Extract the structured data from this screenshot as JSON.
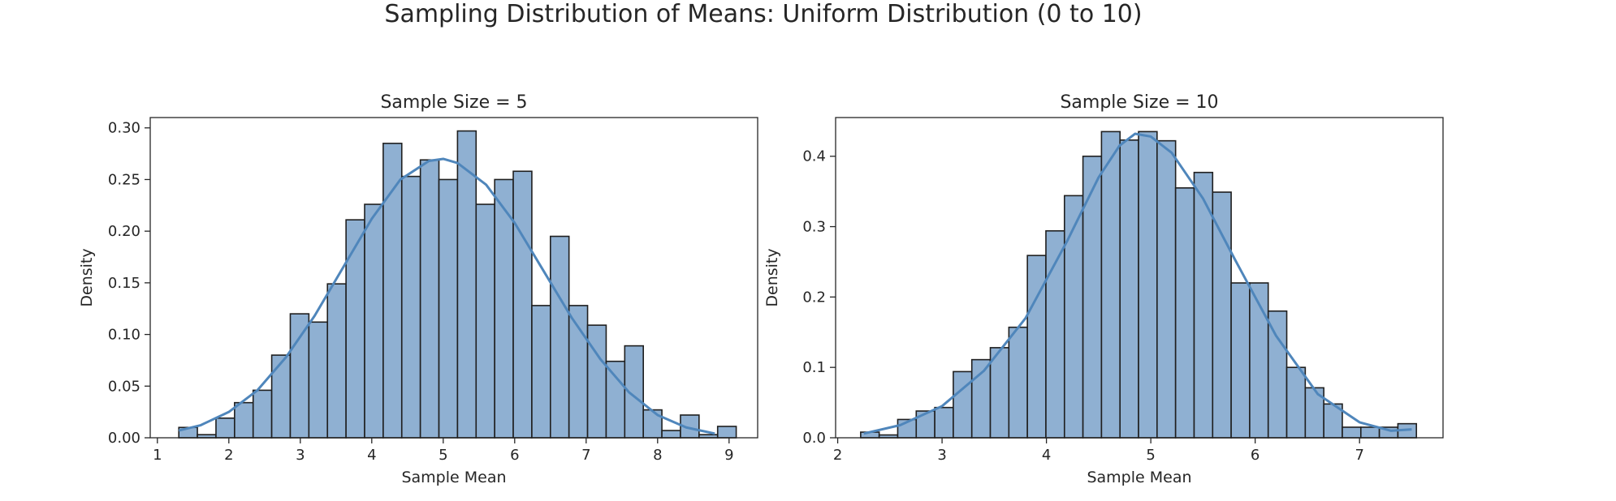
{
  "figure": {
    "suptitle": "Sampling Distribution of Means: Uniform Distribution (0 to 10)"
  },
  "colors": {
    "bar_fill": "#8fb0d2",
    "bar_edge": "#1f1f1f",
    "kde": "#4f86bb",
    "axis": "#262626"
  },
  "chart_data": [
    {
      "type": "bar",
      "title": "Sample Size = 5",
      "xlabel": "Sample Mean",
      "ylabel": "Density",
      "xlim": [
        0.9,
        9.4
      ],
      "ylim": [
        0,
        0.31
      ],
      "xticks": [
        1,
        2,
        3,
        4,
        5,
        6,
        7,
        8,
        9
      ],
      "yticks": [
        0.0,
        0.05,
        0.1,
        0.15,
        0.2,
        0.25,
        0.3
      ],
      "ytick_decimals": 2,
      "grid": false,
      "bin_start": 1.3,
      "bin_width": 0.26,
      "values": [
        0.01,
        0.003,
        0.019,
        0.034,
        0.046,
        0.08,
        0.12,
        0.112,
        0.149,
        0.211,
        0.226,
        0.285,
        0.253,
        0.269,
        0.25,
        0.297,
        0.226,
        0.25,
        0.258,
        0.128,
        0.195,
        0.128,
        0.109,
        0.074,
        0.089,
        0.027,
        0.007,
        0.022,
        0.003,
        0.011
      ],
      "kde": {
        "x": [
          1.3,
          1.6,
          2.0,
          2.4,
          2.8,
          3.2,
          3.6,
          4.0,
          4.4,
          4.8,
          5.0,
          5.2,
          5.6,
          6.0,
          6.4,
          6.8,
          7.2,
          7.6,
          8.0,
          8.4,
          8.8
        ],
        "y": [
          0.007,
          0.012,
          0.025,
          0.046,
          0.078,
          0.118,
          0.165,
          0.212,
          0.25,
          0.268,
          0.27,
          0.266,
          0.245,
          0.208,
          0.162,
          0.116,
          0.076,
          0.044,
          0.022,
          0.01,
          0.004
        ]
      }
    },
    {
      "type": "bar",
      "title": "Sample Size = 10",
      "xlabel": "Sample Mean",
      "ylabel": "Density",
      "xlim": [
        1.98,
        7.8
      ],
      "ylim": [
        0,
        0.455
      ],
      "xticks": [
        2,
        3,
        4,
        5,
        6,
        7
      ],
      "yticks": [
        0.0,
        0.1,
        0.2,
        0.3,
        0.4
      ],
      "ytick_decimals": 1,
      "grid": false,
      "bin_start": 2.22,
      "bin_width": 0.1775,
      "values": [
        0.008,
        0.004,
        0.026,
        0.038,
        0.043,
        0.094,
        0.111,
        0.128,
        0.157,
        0.259,
        0.294,
        0.344,
        0.4,
        0.435,
        0.423,
        0.435,
        0.422,
        0.355,
        0.377,
        0.349,
        0.22,
        0.22,
        0.18,
        0.1,
        0.071,
        0.048,
        0.015,
        0.015,
        0.015,
        0.02
      ],
      "kde": {
        "x": [
          2.25,
          2.6,
          3.0,
          3.4,
          3.8,
          4.2,
          4.5,
          4.7,
          4.85,
          5.0,
          5.2,
          5.5,
          5.8,
          6.2,
          6.6,
          7.0,
          7.3,
          7.5
        ],
        "y": [
          0.006,
          0.018,
          0.045,
          0.095,
          0.17,
          0.28,
          0.37,
          0.415,
          0.432,
          0.428,
          0.405,
          0.34,
          0.255,
          0.145,
          0.062,
          0.022,
          0.01,
          0.012
        ]
      }
    }
  ]
}
